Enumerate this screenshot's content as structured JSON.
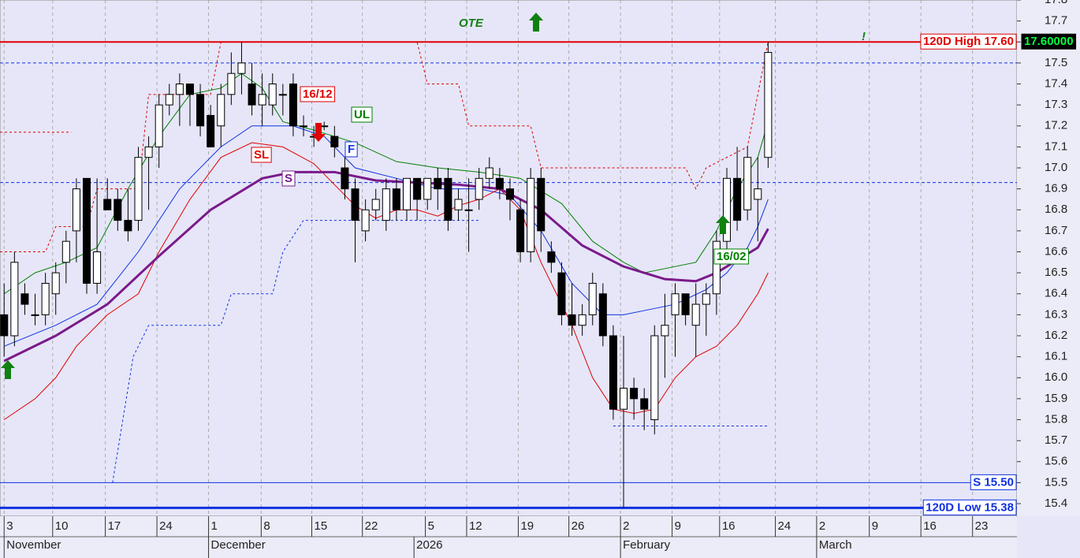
{
  "chart_data": {
    "type": "candlestick",
    "xlim": [
      -0.4,
      98.1
    ],
    "ylim": [
      15.34,
      17.8
    ],
    "yticks": [
      15.4,
      15.5,
      15.6,
      15.7,
      15.8,
      15.9,
      {
        "value": 16,
        "label": "16.0"
      },
      16.1,
      16.2,
      16.3,
      16.4,
      16.5,
      16.6,
      16.7,
      16.8,
      16.9,
      {
        "value": 17,
        "label": "17.0"
      },
      17.1,
      17.2,
      17.3,
      17.4,
      17.5,
      17.6,
      17.7,
      17.8
    ],
    "xticks": [
      {
        "value": 0,
        "label": "3"
      },
      {
        "value": 4.7,
        "label": "10"
      },
      {
        "value": 9.8,
        "label": "17"
      },
      {
        "value": 14.8,
        "label": "24"
      },
      {
        "value": 19.8,
        "label": "1"
      },
      {
        "value": 24.9,
        "label": "8"
      },
      {
        "value": 29.8,
        "label": "15"
      },
      {
        "value": 34.7,
        "label": "22"
      },
      {
        "value": 40.8,
        "label": "5"
      },
      {
        "value": 44.8,
        "label": "12"
      },
      {
        "value": 49.8,
        "label": "19"
      },
      {
        "value": 54.7,
        "label": "26"
      },
      {
        "value": 59.7,
        "label": "2"
      },
      {
        "value": 64.7,
        "label": "9"
      },
      {
        "value": 69.3,
        "label": "16"
      },
      {
        "value": 74.7,
        "label": "24"
      },
      {
        "value": 78.7,
        "label": "2"
      },
      {
        "value": 83.8,
        "label": "9"
      },
      {
        "value": 88.8,
        "label": "16"
      },
      {
        "value": 93.8,
        "label": "23"
      }
    ],
    "period_ticks": [
      {
        "value": 0,
        "label": "November"
      },
      {
        "value": 19.8,
        "label": "December"
      },
      {
        "value": 39.7,
        "label": "2026"
      },
      {
        "value": 59.7,
        "label": "February"
      },
      {
        "value": 78.7,
        "label": "March"
      }
    ],
    "grid": true,
    "candles": {
      "open": [
        16.3,
        16.2,
        16.4,
        16.3,
        16.3,
        16.4,
        16.55,
        16.7,
        16.95,
        16.45,
        16.85,
        16.85,
        16.75,
        16.75,
        17.05,
        17.1,
        17.3,
        17.35,
        17.4,
        17.35,
        17.25,
        17.2,
        17.35,
        17.45,
        17.4,
        17.3,
        17.3,
        17.35,
        17.4,
        17.2,
        17.15,
        17.2,
        17.15,
        17.0,
        16.9,
        16.7,
        16.8,
        16.75,
        16.9,
        16.8,
        16.95,
        16.85,
        16.95,
        16.95,
        16.8,
        16.8,
        16.85,
        16.95,
        16.95,
        16.9,
        16.8,
        16.6,
        16.95,
        16.6,
        16.5,
        16.3,
        16.25,
        16.3,
        16.4,
        16.2,
        15.85,
        15.95,
        15.9,
        15.8,
        16.2,
        16.3,
        16.4,
        16.25,
        16.35,
        16.4,
        16.65,
        16.95,
        16.8,
        16.85,
        17.05
      ],
      "high": [
        16.45,
        16.6,
        16.45,
        16.4,
        16.5,
        16.55,
        16.7,
        16.95,
        16.95,
        16.95,
        16.95,
        16.9,
        16.9,
        17.1,
        17.15,
        17.35,
        17.4,
        17.45,
        17.4,
        17.4,
        17.3,
        17.4,
        17.55,
        17.6,
        17.5,
        17.45,
        17.45,
        17.4,
        17.45,
        17.25,
        17.2,
        17.22,
        17.2,
        17.05,
        16.95,
        16.85,
        16.9,
        16.95,
        16.95,
        16.95,
        16.95,
        16.95,
        17.0,
        17.0,
        16.9,
        16.95,
        17.0,
        17.05,
        17.0,
        16.95,
        16.85,
        17.0,
        17.0,
        16.65,
        16.55,
        16.45,
        16.35,
        16.5,
        16.45,
        16.25,
        16.2,
        16.0,
        15.95,
        16.25,
        16.4,
        16.45,
        16.4,
        16.45,
        16.45,
        16.7,
        17.0,
        17.1,
        17.1,
        17.05,
        17.6
      ],
      "low": [
        16.1,
        16.15,
        16.3,
        16.25,
        16.25,
        16.3,
        16.45,
        16.55,
        16.4,
        16.4,
        16.8,
        16.7,
        16.65,
        16.7,
        16.8,
        17.0,
        17.25,
        17.2,
        17.2,
        17.15,
        17.1,
        17.1,
        17.3,
        17.35,
        17.25,
        17.2,
        17.25,
        17.25,
        17.15,
        17.15,
        17.1,
        17.18,
        17.05,
        16.85,
        16.55,
        16.65,
        16.75,
        16.7,
        16.75,
        16.75,
        16.75,
        16.8,
        16.8,
        16.7,
        16.75,
        16.6,
        16.8,
        16.9,
        16.85,
        16.75,
        16.55,
        16.55,
        16.6,
        16.5,
        16.25,
        16.2,
        16.2,
        16.25,
        16.15,
        15.8,
        15.38,
        15.8,
        15.75,
        15.73,
        16.0,
        16.1,
        16.25,
        16.1,
        16.2,
        16.3,
        16.6,
        16.7,
        16.75,
        16.65,
        17.0
      ],
      "close": [
        16.2,
        16.55,
        16.35,
        16.3,
        16.45,
        16.5,
        16.65,
        16.9,
        16.45,
        16.6,
        16.8,
        16.75,
        16.7,
        17.05,
        17.1,
        17.3,
        17.35,
        17.4,
        17.35,
        17.2,
        17.1,
        17.35,
        17.45,
        17.5,
        17.3,
        17.35,
        17.4,
        17.35,
        17.2,
        17.2,
        17.15,
        17.2,
        17.1,
        16.9,
        16.75,
        16.8,
        16.85,
        16.9,
        16.8,
        16.95,
        16.85,
        16.95,
        16.9,
        16.75,
        16.85,
        16.8,
        16.95,
        17.0,
        16.9,
        16.85,
        16.6,
        16.95,
        16.7,
        16.55,
        16.3,
        16.25,
        16.3,
        16.45,
        16.2,
        15.85,
        15.95,
        15.9,
        15.85,
        16.2,
        16.25,
        16.4,
        16.3,
        16.35,
        16.4,
        16.65,
        16.95,
        16.75,
        17.05,
        16.9,
        17.55
      ]
    },
    "series": [
      {
        "name": "UL",
        "color": "#008000",
        "width": 1,
        "x": [
          0,
          3,
          6,
          9,
          12,
          15,
          18,
          21,
          23,
          25,
          27,
          30,
          34,
          38,
          42,
          46,
          50,
          54,
          57,
          60,
          62,
          64,
          67,
          69,
          71,
          73,
          74
        ],
        "values": [
          16.4,
          16.5,
          16.55,
          16.62,
          16.9,
          17.15,
          17.35,
          17.38,
          17.45,
          17.38,
          17.22,
          17.18,
          17.12,
          17.03,
          17.0,
          16.98,
          16.95,
          16.83,
          16.65,
          16.55,
          16.5,
          16.52,
          16.55,
          16.7,
          16.9,
          17.05,
          17.22
        ]
      },
      {
        "name": "F",
        "color": "#1030e0",
        "width": 1,
        "x": [
          0,
          5,
          9,
          13,
          17,
          21,
          24,
          28,
          31,
          34,
          38,
          42,
          46,
          49,
          52,
          55,
          58,
          60,
          62,
          65,
          68,
          70,
          72,
          73,
          74
        ],
        "values": [
          16.15,
          16.25,
          16.35,
          16.6,
          16.9,
          17.1,
          17.2,
          17.2,
          17.15,
          17.0,
          16.95,
          16.9,
          16.9,
          16.87,
          16.7,
          16.45,
          16.3,
          16.3,
          16.32,
          16.35,
          16.42,
          16.5,
          16.62,
          16.72,
          16.85
        ]
      },
      {
        "name": "SL",
        "color": "#e00000",
        "width": 1,
        "x": [
          0,
          3,
          5,
          7,
          10,
          13,
          15,
          18,
          21,
          24,
          27,
          30,
          32,
          34,
          36,
          38,
          40,
          42,
          44,
          46,
          48,
          50,
          52,
          55,
          57,
          59,
          61,
          63,
          65,
          67,
          69,
          71,
          73,
          74
        ],
        "values": [
          15.8,
          15.9,
          16.0,
          16.15,
          16.3,
          16.4,
          16.6,
          16.85,
          17.05,
          17.12,
          17.1,
          17.02,
          16.92,
          16.82,
          16.76,
          16.8,
          16.8,
          16.77,
          16.82,
          16.85,
          16.9,
          16.8,
          16.55,
          16.25,
          16.0,
          15.85,
          15.83,
          15.85,
          16.0,
          16.1,
          16.15,
          16.25,
          16.4,
          16.5
        ]
      },
      {
        "name": "S",
        "color": "#7a1a8a",
        "width": 3,
        "x": [
          0,
          5,
          10,
          15,
          20,
          25,
          28,
          32,
          36,
          40,
          44,
          48,
          52,
          56,
          60,
          62,
          64,
          67,
          69,
          71,
          73,
          74
        ],
        "values": [
          16.08,
          16.2,
          16.35,
          16.58,
          16.8,
          16.95,
          16.98,
          16.98,
          16.94,
          16.93,
          16.92,
          16.9,
          16.8,
          16.63,
          16.53,
          16.5,
          16.47,
          16.46,
          16.5,
          16.56,
          16.62,
          16.71
        ]
      }
    ],
    "stops": [
      {
        "color": "#e00000",
        "x": [
          -0.4,
          4,
          5,
          8,
          9,
          13,
          14,
          20,
          21,
          40,
          41,
          44,
          45,
          51,
          52,
          66,
          67,
          68,
          72,
          74
        ],
        "values": [
          16.6,
          16.6,
          16.72,
          16.72,
          16.9,
          16.9,
          17.35,
          17.35,
          17.6,
          17.6,
          17.4,
          17.4,
          17.2,
          17.2,
          17.0,
          17.0,
          16.9,
          17.0,
          17.1,
          17.6
        ]
      },
      {
        "color": "#e00000",
        "x": [
          -0.4,
          6.5
        ],
        "values": [
          17.17,
          17.17
        ]
      },
      {
        "color": "#1030e0",
        "x": [
          10.5,
          12.5,
          14,
          21,
          22,
          26,
          27,
          29,
          46,
          46,
          59,
          74
        ],
        "values": [
          15.5,
          16.1,
          16.25,
          16.25,
          16.4,
          16.4,
          16.6,
          16.75,
          16.75,
          null,
          15.77,
          15.77
        ]
      }
    ],
    "hlines": [
      {
        "value": 17.6,
        "color": "#e00000",
        "width": 2,
        "dashed": false,
        "label": "120D High 17.60"
      },
      {
        "value": 17.5,
        "color": "#1030e0",
        "width": 1,
        "dashed": true
      },
      {
        "value": 16.93,
        "color": "#1030e0",
        "width": 1,
        "dashed": true
      },
      {
        "value": 15.5,
        "color": "#1030e0",
        "width": 1,
        "dashed": false,
        "label": "S 15.50"
      },
      {
        "value": 15.38,
        "color": "#1030e0",
        "width": 3,
        "dashed": false,
        "label": "120D Low 15.38"
      }
    ],
    "last_price": {
      "value": 17.6,
      "label": "17.60000"
    },
    "annotations": [
      "OTE",
      "16/12",
      "16/02",
      "!"
    ]
  }
}
